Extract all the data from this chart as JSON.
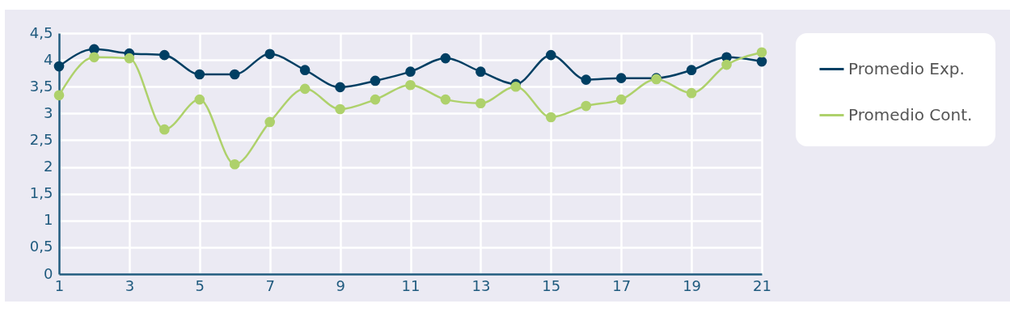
{
  "chart_data": {
    "type": "line",
    "x": [
      1,
      2,
      3,
      4,
      5,
      6,
      7,
      8,
      9,
      10,
      11,
      12,
      13,
      14,
      15,
      16,
      17,
      18,
      19,
      20,
      21
    ],
    "series": [
      {
        "name": "Promedio Exp.",
        "color": "#003f63",
        "values": [
          3.88,
          4.2,
          4.12,
          4.09,
          3.73,
          3.73,
          4.11,
          3.81,
          3.49,
          3.61,
          3.78,
          4.03,
          3.78,
          3.55,
          4.09,
          3.63,
          3.66,
          3.66,
          3.81,
          4.05,
          3.97
        ]
      },
      {
        "name": "Promedio Cont.",
        "color": "#aed16b",
        "values": [
          3.34,
          4.05,
          4.03,
          2.7,
          3.26,
          2.05,
          2.84,
          3.46,
          3.08,
          3.26,
          3.53,
          3.26,
          3.19,
          3.5,
          2.93,
          3.14,
          3.26,
          3.64,
          3.38,
          3.91,
          4.14
        ]
      }
    ],
    "xlim": [
      1,
      21
    ],
    "xticks": [
      1,
      3,
      5,
      7,
      9,
      11,
      13,
      15,
      17,
      19,
      21
    ],
    "ylim": [
      0,
      4.5
    ],
    "yticks": [
      0,
      {
        "value": 0.5,
        "label": "0,5"
      },
      1,
      {
        "value": 1.5,
        "label": "1,5"
      },
      2,
      {
        "value": 2.5,
        "label": "2,5"
      },
      3,
      {
        "value": 3.5,
        "label": "3,5"
      },
      4,
      {
        "value": 4.5,
        "label": "4,5"
      }
    ],
    "grid": true,
    "legend": "right",
    "marker": "circle",
    "line_style": "solid"
  }
}
